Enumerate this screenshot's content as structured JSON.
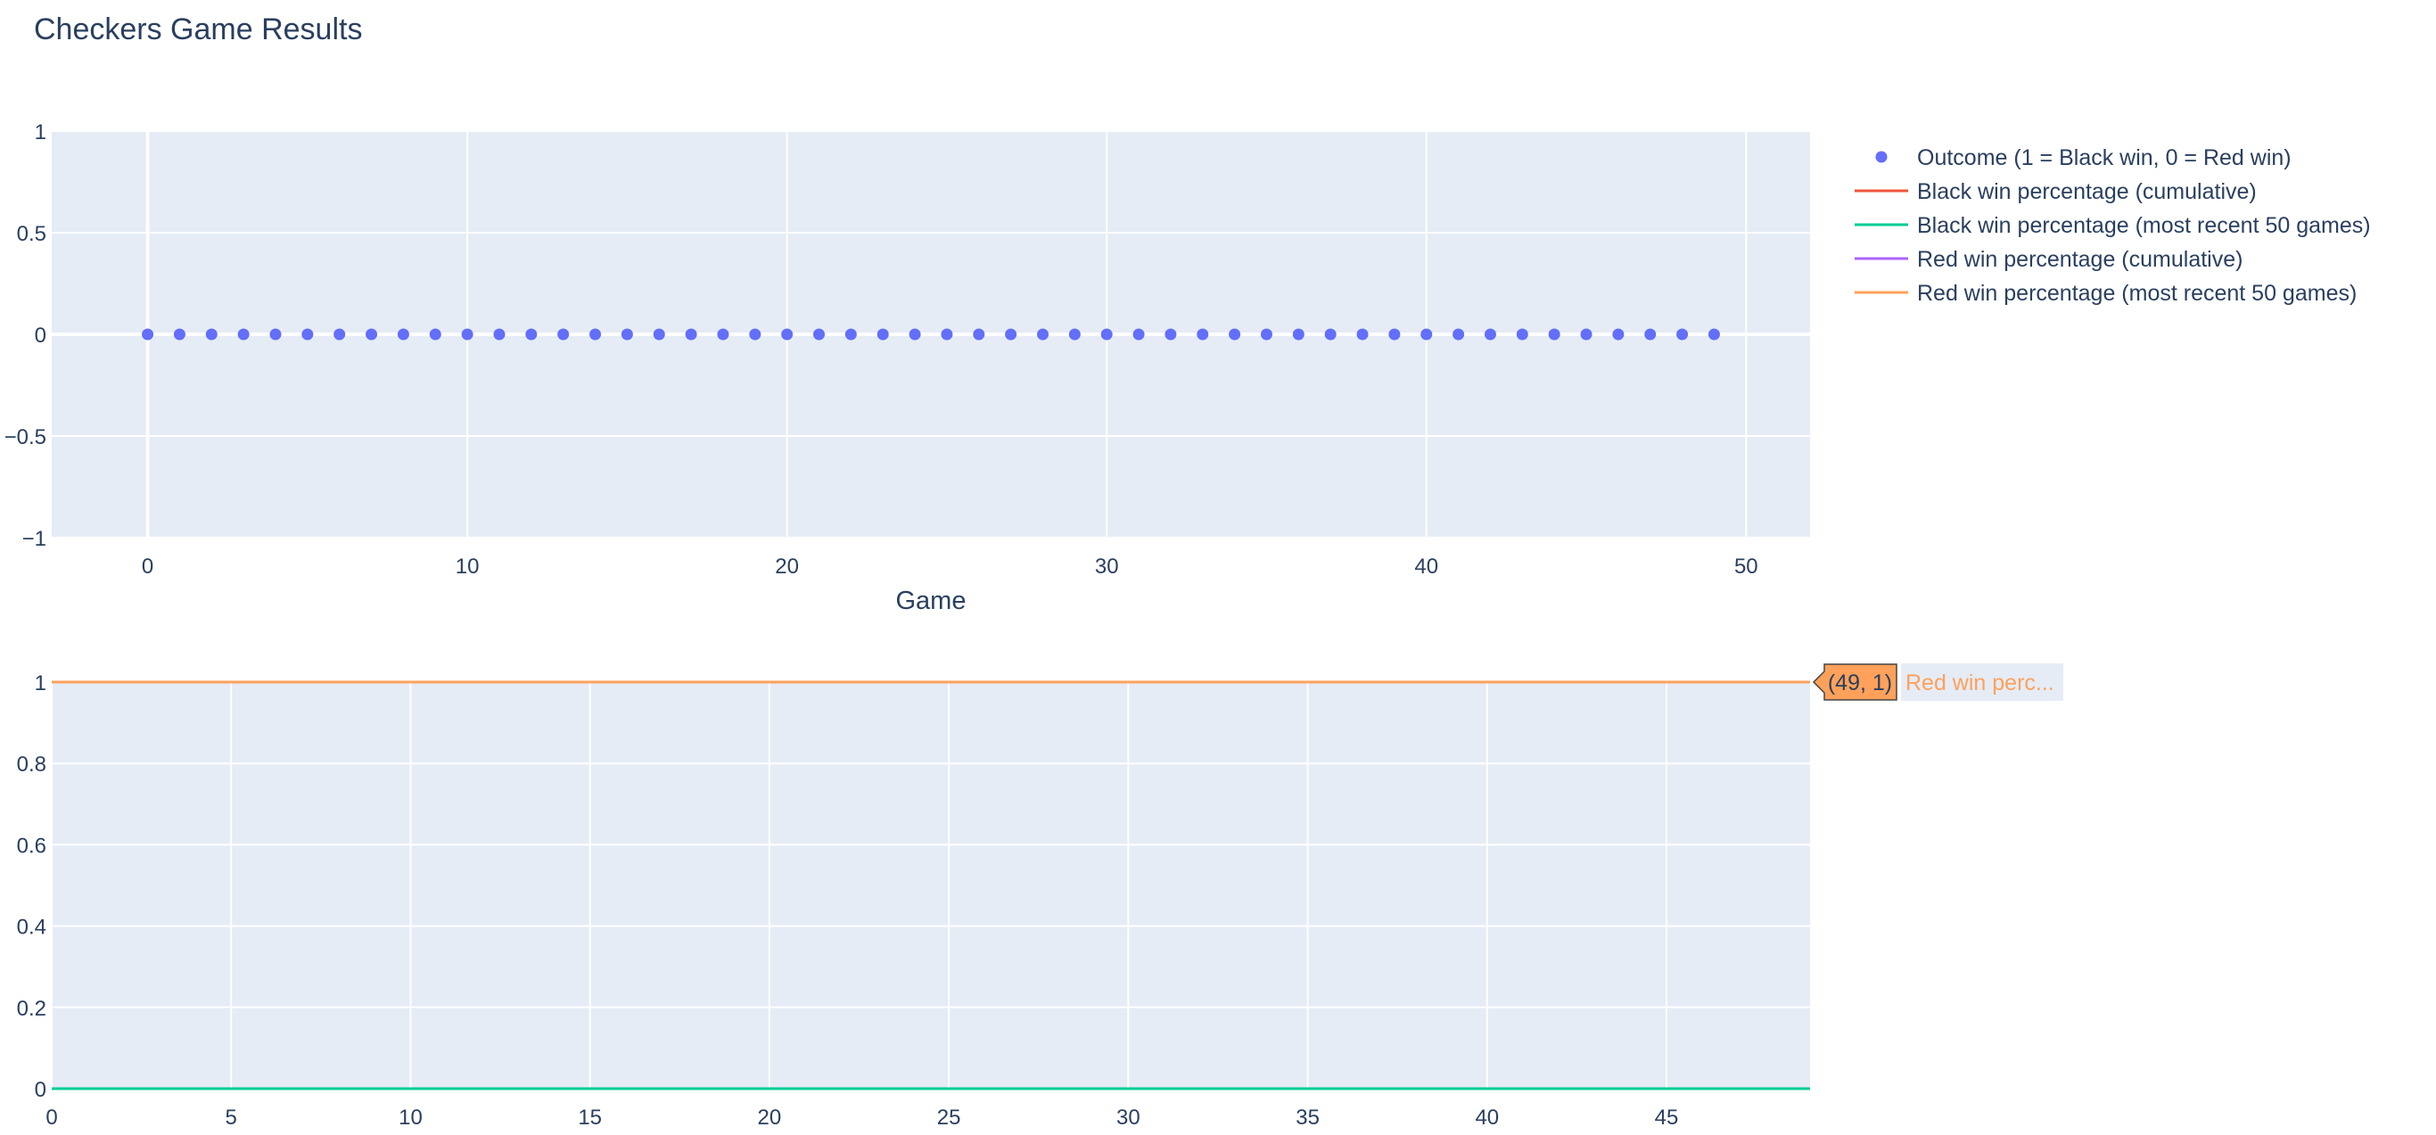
{
  "title": "Checkers Game Results",
  "colors": {
    "plot_bg": "#e5ecf6",
    "grid": "#ffffff",
    "text": "#2a3f5f",
    "outcome": "#636efa",
    "black_cumulative": "#ef553b",
    "black_recent": "#00cc96",
    "red_cumulative": "#ab63fa",
    "red_recent": "#ffa15a"
  },
  "legend": {
    "position": "top-right, outside plot",
    "items": [
      {
        "label": "Outcome (1 = Black win, 0 = Red win)",
        "symbol": "marker",
        "color": "#636efa"
      },
      {
        "label": "Black win percentage (cumulative)",
        "symbol": "line",
        "color": "#ef553b"
      },
      {
        "label": "Black win percentage (most recent 50 games)",
        "symbol": "line",
        "color": "#00cc96"
      },
      {
        "label": "Red win percentage (cumulative)",
        "symbol": "line",
        "color": "#ab63fa"
      },
      {
        "label": "Red win percentage (most recent 50 games)",
        "symbol": "line",
        "color": "#ffa15a"
      }
    ]
  },
  "hover": {
    "value_text": "(49, 1)",
    "name_text": "Red win perc...",
    "color": "#ffa15a"
  },
  "chart_data": [
    {
      "type": "scatter",
      "xlabel": "Game",
      "ylabel": "",
      "xlim": [
        -3,
        52
      ],
      "ylim": [
        -1,
        1
      ],
      "xticks": [
        0,
        10,
        20,
        30,
        40,
        50
      ],
      "yticks": [
        -1,
        -0.5,
        0,
        0.5,
        1
      ],
      "ytick_labels": [
        "−1",
        "−0.5",
        "0",
        "0.5",
        "1"
      ],
      "grid": true,
      "series": [
        {
          "name": "Outcome (1 = Black win, 0 = Red win)",
          "color": "#636efa",
          "x": [
            0,
            1,
            2,
            3,
            4,
            5,
            6,
            7,
            8,
            9,
            10,
            11,
            12,
            13,
            14,
            15,
            16,
            17,
            18,
            19,
            20,
            21,
            22,
            23,
            24,
            25,
            26,
            27,
            28,
            29,
            30,
            31,
            32,
            33,
            34,
            35,
            36,
            37,
            38,
            39,
            40,
            41,
            42,
            43,
            44,
            45,
            46,
            47,
            48,
            49
          ],
          "y": [
            0,
            0,
            0,
            0,
            0,
            0,
            0,
            0,
            0,
            0,
            0,
            0,
            0,
            0,
            0,
            0,
            0,
            0,
            0,
            0,
            0,
            0,
            0,
            0,
            0,
            0,
            0,
            0,
            0,
            0,
            0,
            0,
            0,
            0,
            0,
            0,
            0,
            0,
            0,
            0,
            0,
            0,
            0,
            0,
            0,
            0,
            0,
            0,
            0,
            0
          ]
        }
      ]
    },
    {
      "type": "line",
      "xlabel": "",
      "ylabel": "",
      "xlim": [
        0,
        49
      ],
      "ylim": [
        0,
        1
      ],
      "xticks": [
        0,
        5,
        10,
        15,
        20,
        25,
        30,
        35,
        40,
        45
      ],
      "yticks": [
        0,
        0.2,
        0.4,
        0.6,
        0.8,
        1
      ],
      "grid": true,
      "series": [
        {
          "name": "Black win percentage (cumulative)",
          "color": "#ef553b",
          "x": [
            0,
            49
          ],
          "y": [
            0,
            0
          ]
        },
        {
          "name": "Black win percentage (most recent 50 games)",
          "color": "#00cc96",
          "x": [
            0,
            49
          ],
          "y": [
            0,
            0
          ]
        },
        {
          "name": "Red win percentage (cumulative)",
          "color": "#ab63fa",
          "x": [
            0,
            49
          ],
          "y": [
            1,
            1
          ]
        },
        {
          "name": "Red win percentage (most recent 50 games)",
          "color": "#ffa15a",
          "x": [
            0,
            49
          ],
          "y": [
            1,
            1
          ]
        }
      ]
    }
  ]
}
